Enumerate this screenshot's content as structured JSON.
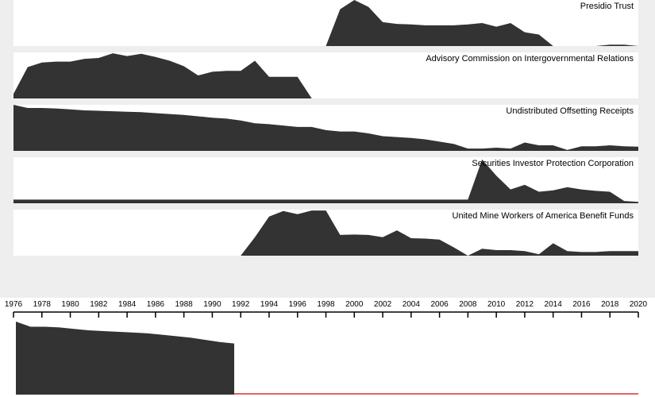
{
  "chart_data": {
    "type": "area",
    "x": [
      1976,
      1977,
      1978,
      1979,
      1980,
      1981,
      1982,
      1983,
      1984,
      1985,
      1986,
      1987,
      1988,
      1989,
      1990,
      1991,
      1992,
      1993,
      1994,
      1995,
      1996,
      1997,
      1998,
      1999,
      2000,
      2001,
      2002,
      2003,
      2004,
      2005,
      2006,
      2007,
      2008,
      2009,
      2010,
      2011,
      2012,
      2013,
      2014,
      2015,
      2016,
      2017,
      2018,
      2019,
      2020
    ],
    "xlim": [
      1976,
      2020
    ],
    "xticks": [
      1976,
      1978,
      1980,
      1982,
      1984,
      1986,
      1988,
      1990,
      1992,
      1994,
      1996,
      1998,
      2000,
      2002,
      2004,
      2006,
      2008,
      2010,
      2012,
      2014,
      2016,
      2018,
      2020
    ],
    "ylim": [
      0,
      100
    ],
    "color": "#333333",
    "brush": {
      "series": 2,
      "xlim": [
        1976,
        1991
      ],
      "color": "#e03030"
    },
    "series": [
      {
        "name": "Presidio Trust",
        "values": [
          null,
          null,
          null,
          null,
          null,
          null,
          null,
          null,
          null,
          null,
          null,
          null,
          null,
          null,
          null,
          null,
          null,
          null,
          null,
          null,
          null,
          null,
          0,
          80,
          100,
          85,
          52,
          48,
          47,
          45,
          45,
          45,
          47,
          50,
          42,
          50,
          30,
          25,
          0,
          0,
          0,
          0,
          3,
          3,
          0
        ]
      },
      {
        "name": "Advisory Commission on Intergovernmental Relations",
        "values": [
          10,
          68,
          78,
          80,
          80,
          86,
          88,
          98,
          92,
          97,
          90,
          82,
          70,
          50,
          58,
          60,
          60,
          82,
          47,
          47,
          47,
          0,
          null,
          null,
          null,
          null,
          null,
          null,
          null,
          null,
          null,
          null,
          null,
          null,
          null,
          null,
          null,
          null,
          null,
          null,
          null,
          null,
          null,
          null,
          null
        ]
      },
      {
        "name": "Undistributed Offsetting Receipts",
        "values": [
          100,
          93,
          93,
          92,
          90,
          88,
          87,
          86,
          85,
          84,
          82,
          80,
          78,
          75,
          72,
          70,
          66,
          60,
          58,
          55,
          52,
          52,
          45,
          42,
          42,
          38,
          32,
          30,
          28,
          25,
          20,
          15,
          5,
          5,
          7,
          5,
          18,
          12,
          12,
          2,
          10,
          10,
          12,
          10,
          9
        ]
      },
      {
        "name": "Securities Investor Protection Corporation",
        "values": [
          8,
          8,
          8,
          8,
          8,
          8,
          8,
          8,
          8,
          8,
          8,
          8,
          8,
          8,
          8,
          8,
          8,
          8,
          8,
          8,
          8,
          8,
          8,
          8,
          8,
          8,
          8,
          8,
          8,
          8,
          8,
          8,
          8,
          95,
          60,
          30,
          40,
          25,
          28,
          35,
          30,
          27,
          25,
          5,
          3
        ]
      },
      {
        "name": "United Mine Workers of America Benefit Funds",
        "values": [
          0,
          0,
          0,
          0,
          0,
          0,
          0,
          0,
          0,
          0,
          0,
          0,
          0,
          0,
          0,
          0,
          0,
          40,
          85,
          97,
          90,
          98,
          98,
          45,
          46,
          45,
          40,
          55,
          38,
          37,
          35,
          18,
          0,
          15,
          12,
          12,
          10,
          3,
          27,
          10,
          8,
          8,
          10,
          10,
          10
        ]
      }
    ]
  }
}
